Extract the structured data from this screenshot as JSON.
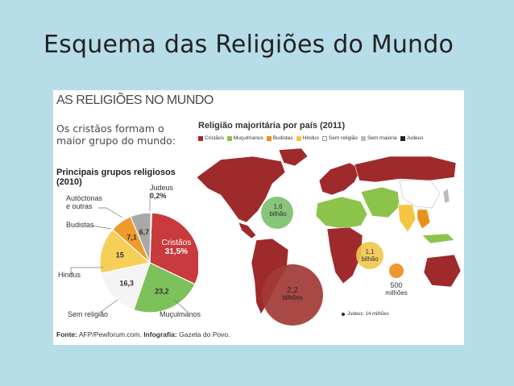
{
  "slide": {
    "title": "Esquema das Religiões do Mundo"
  },
  "infographic": {
    "title": "AS RELIGIÕES NO MUNDO",
    "headline": "Os cristãos formam o maior grupo do mundo:",
    "subhead_line1": "Principais grupos religiosos",
    "subhead_line2": "(2010)",
    "source_label": "Fonte:",
    "source_value": "AFP/Pewforum.com.",
    "infographic_label": "Infografia:",
    "infographic_value": "Gazeta do Povo."
  },
  "map": {
    "title": "Religião majoritária por país (2011)",
    "legend": [
      {
        "label": "Cristãos",
        "color": "#9e2a2b"
      },
      {
        "label": "Muçulmanos",
        "color": "#8cc34a"
      },
      {
        "label": "Budistas",
        "color": "#e8901a"
      },
      {
        "label": "Hindus",
        "color": "#f4c542"
      },
      {
        "label": "Sem religião",
        "color": "#ffffff"
      },
      {
        "label": "Sem maioria",
        "color": "#bbbbbb"
      },
      {
        "label": "Judeus",
        "color": "#222222"
      }
    ],
    "bubbles": [
      {
        "value": "1,6",
        "unit": "bilhão",
        "color": "#7bbf6a"
      },
      {
        "value": "2,2",
        "unit": "bilhões",
        "color": "#a23a36"
      },
      {
        "value": "1,1",
        "unit": "bilhão",
        "color": "#f2c64d"
      },
      {
        "value": "500",
        "unit": "milhões",
        "color": "#f0962e"
      }
    ],
    "jews_note": "Judeus: 14 milhões"
  },
  "chart_data": {
    "type": "pie",
    "title": "Principais grupos religiosos (2010)",
    "slices": [
      {
        "name": "Cristãos",
        "value": 31.5,
        "label": "31,5%",
        "color": "#c93a3c"
      },
      {
        "name": "Muçulmanos",
        "value": 23.2,
        "label": "23,2",
        "color": "#7cc15a"
      },
      {
        "name": "Sem religião",
        "value": 16.3,
        "label": "16,3",
        "color": "#f4f4f4"
      },
      {
        "name": "Hindus",
        "value": 15,
        "label": "15",
        "color": "#f6cf57"
      },
      {
        "name": "Budistas",
        "value": 7.1,
        "label": "7,1",
        "color": "#ee9b2a"
      },
      {
        "name": "Autóctonas e outras",
        "value": 6.7,
        "label": "6,7",
        "color": "#a8a8a8"
      },
      {
        "name": "Judeus",
        "value": 0.2,
        "label": "0,2%",
        "color": "#222222"
      }
    ],
    "outer_labels": {
      "judeus": "Judeus",
      "autoctonas_1": "Autóctonas",
      "autoctonas_2": "e outras",
      "budistas": "Budistas",
      "hindus": "Hindus",
      "sem_religiao": "Sem religião",
      "muculmanos": "Muçulmanos",
      "cristaos": "Cristãos"
    }
  }
}
